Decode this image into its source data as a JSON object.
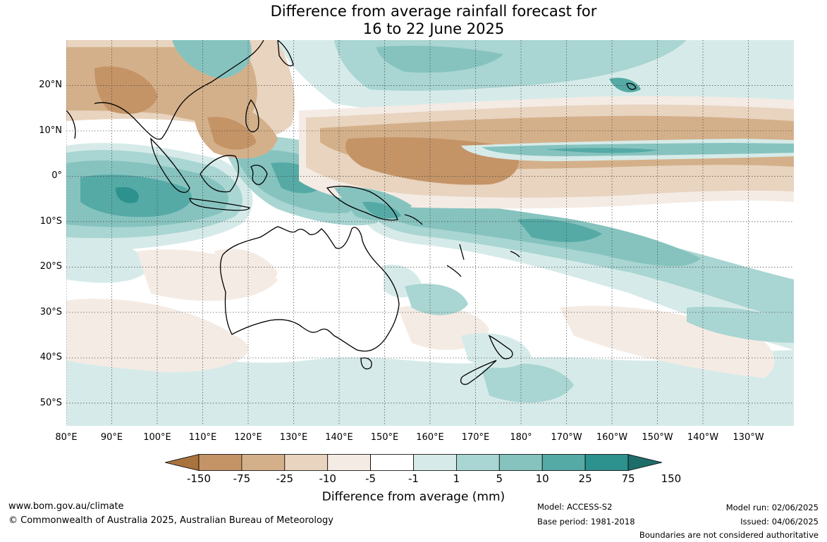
{
  "title": {
    "line1": "Difference from average rainfall forecast for",
    "line2": "16 to 22 June 2025"
  },
  "map": {
    "lat_labels": [
      "20°N",
      "10°N",
      "0°",
      "10°S",
      "20°S",
      "30°S",
      "40°S",
      "50°S"
    ],
    "lon_labels": [
      "80°E",
      "90°E",
      "100°E",
      "110°E",
      "120°E",
      "130°E",
      "140°E",
      "150°E",
      "160°E",
      "170°E",
      "180°",
      "170°W",
      "160°W",
      "150°W",
      "140°W",
      "130°W"
    ],
    "latitudes": [
      20,
      10,
      0,
      -10,
      -20,
      -30,
      -40,
      -50
    ],
    "longitudes": [
      80,
      90,
      100,
      110,
      120,
      130,
      140,
      150,
      160,
      170,
      180,
      190,
      200,
      210,
      220,
      230
    ],
    "extent": {
      "lon_min": 80,
      "lon_max": 240,
      "lat_max": 30,
      "lat_min": -55
    },
    "colors": {
      "dry_150": "#a8733d",
      "dry_75": "#c49467",
      "dry_25": "#d4b08a",
      "dry_10": "#e8d4bf",
      "dry_5": "#f4ebe4",
      "neutral": "#ffffff",
      "wet_1": "#d6ebe9",
      "wet_5": "#a9d5d2",
      "wet_10": "#86c3bf",
      "wet_25": "#55aaa6",
      "wet_75": "#2d928e",
      "wet_150": "#1f6d6b",
      "coast": "#000000",
      "borders": "#888888",
      "grid": "#444444"
    }
  },
  "colorbar": {
    "ticks": [
      "-150",
      "-75",
      "-25",
      "-10",
      "-5",
      "-1",
      "1",
      "5",
      "10",
      "25",
      "75",
      "150"
    ],
    "label": "Difference from average (mm)",
    "colors": [
      "#a8733d",
      "#c49467",
      "#d4b08a",
      "#e8d4bf",
      "#f4ebe4",
      "#ffffff",
      "#d6ebe9",
      "#a9d5d2",
      "#86c3bf",
      "#55aaa6",
      "#2d928e",
      "#1f6d6b"
    ]
  },
  "footer": {
    "website": "www.bom.gov.au/climate",
    "copyright": "© Commonwealth of Australia 2025, Australian Bureau of Meteorology",
    "model": "Model: ACCESS-S2",
    "base_period": "Base period: 1981-2018",
    "model_run": "Model run: 02/06/2025",
    "issued": "Issued: 04/06/2025",
    "disclaimer": "Boundaries are not considered authoritative"
  }
}
